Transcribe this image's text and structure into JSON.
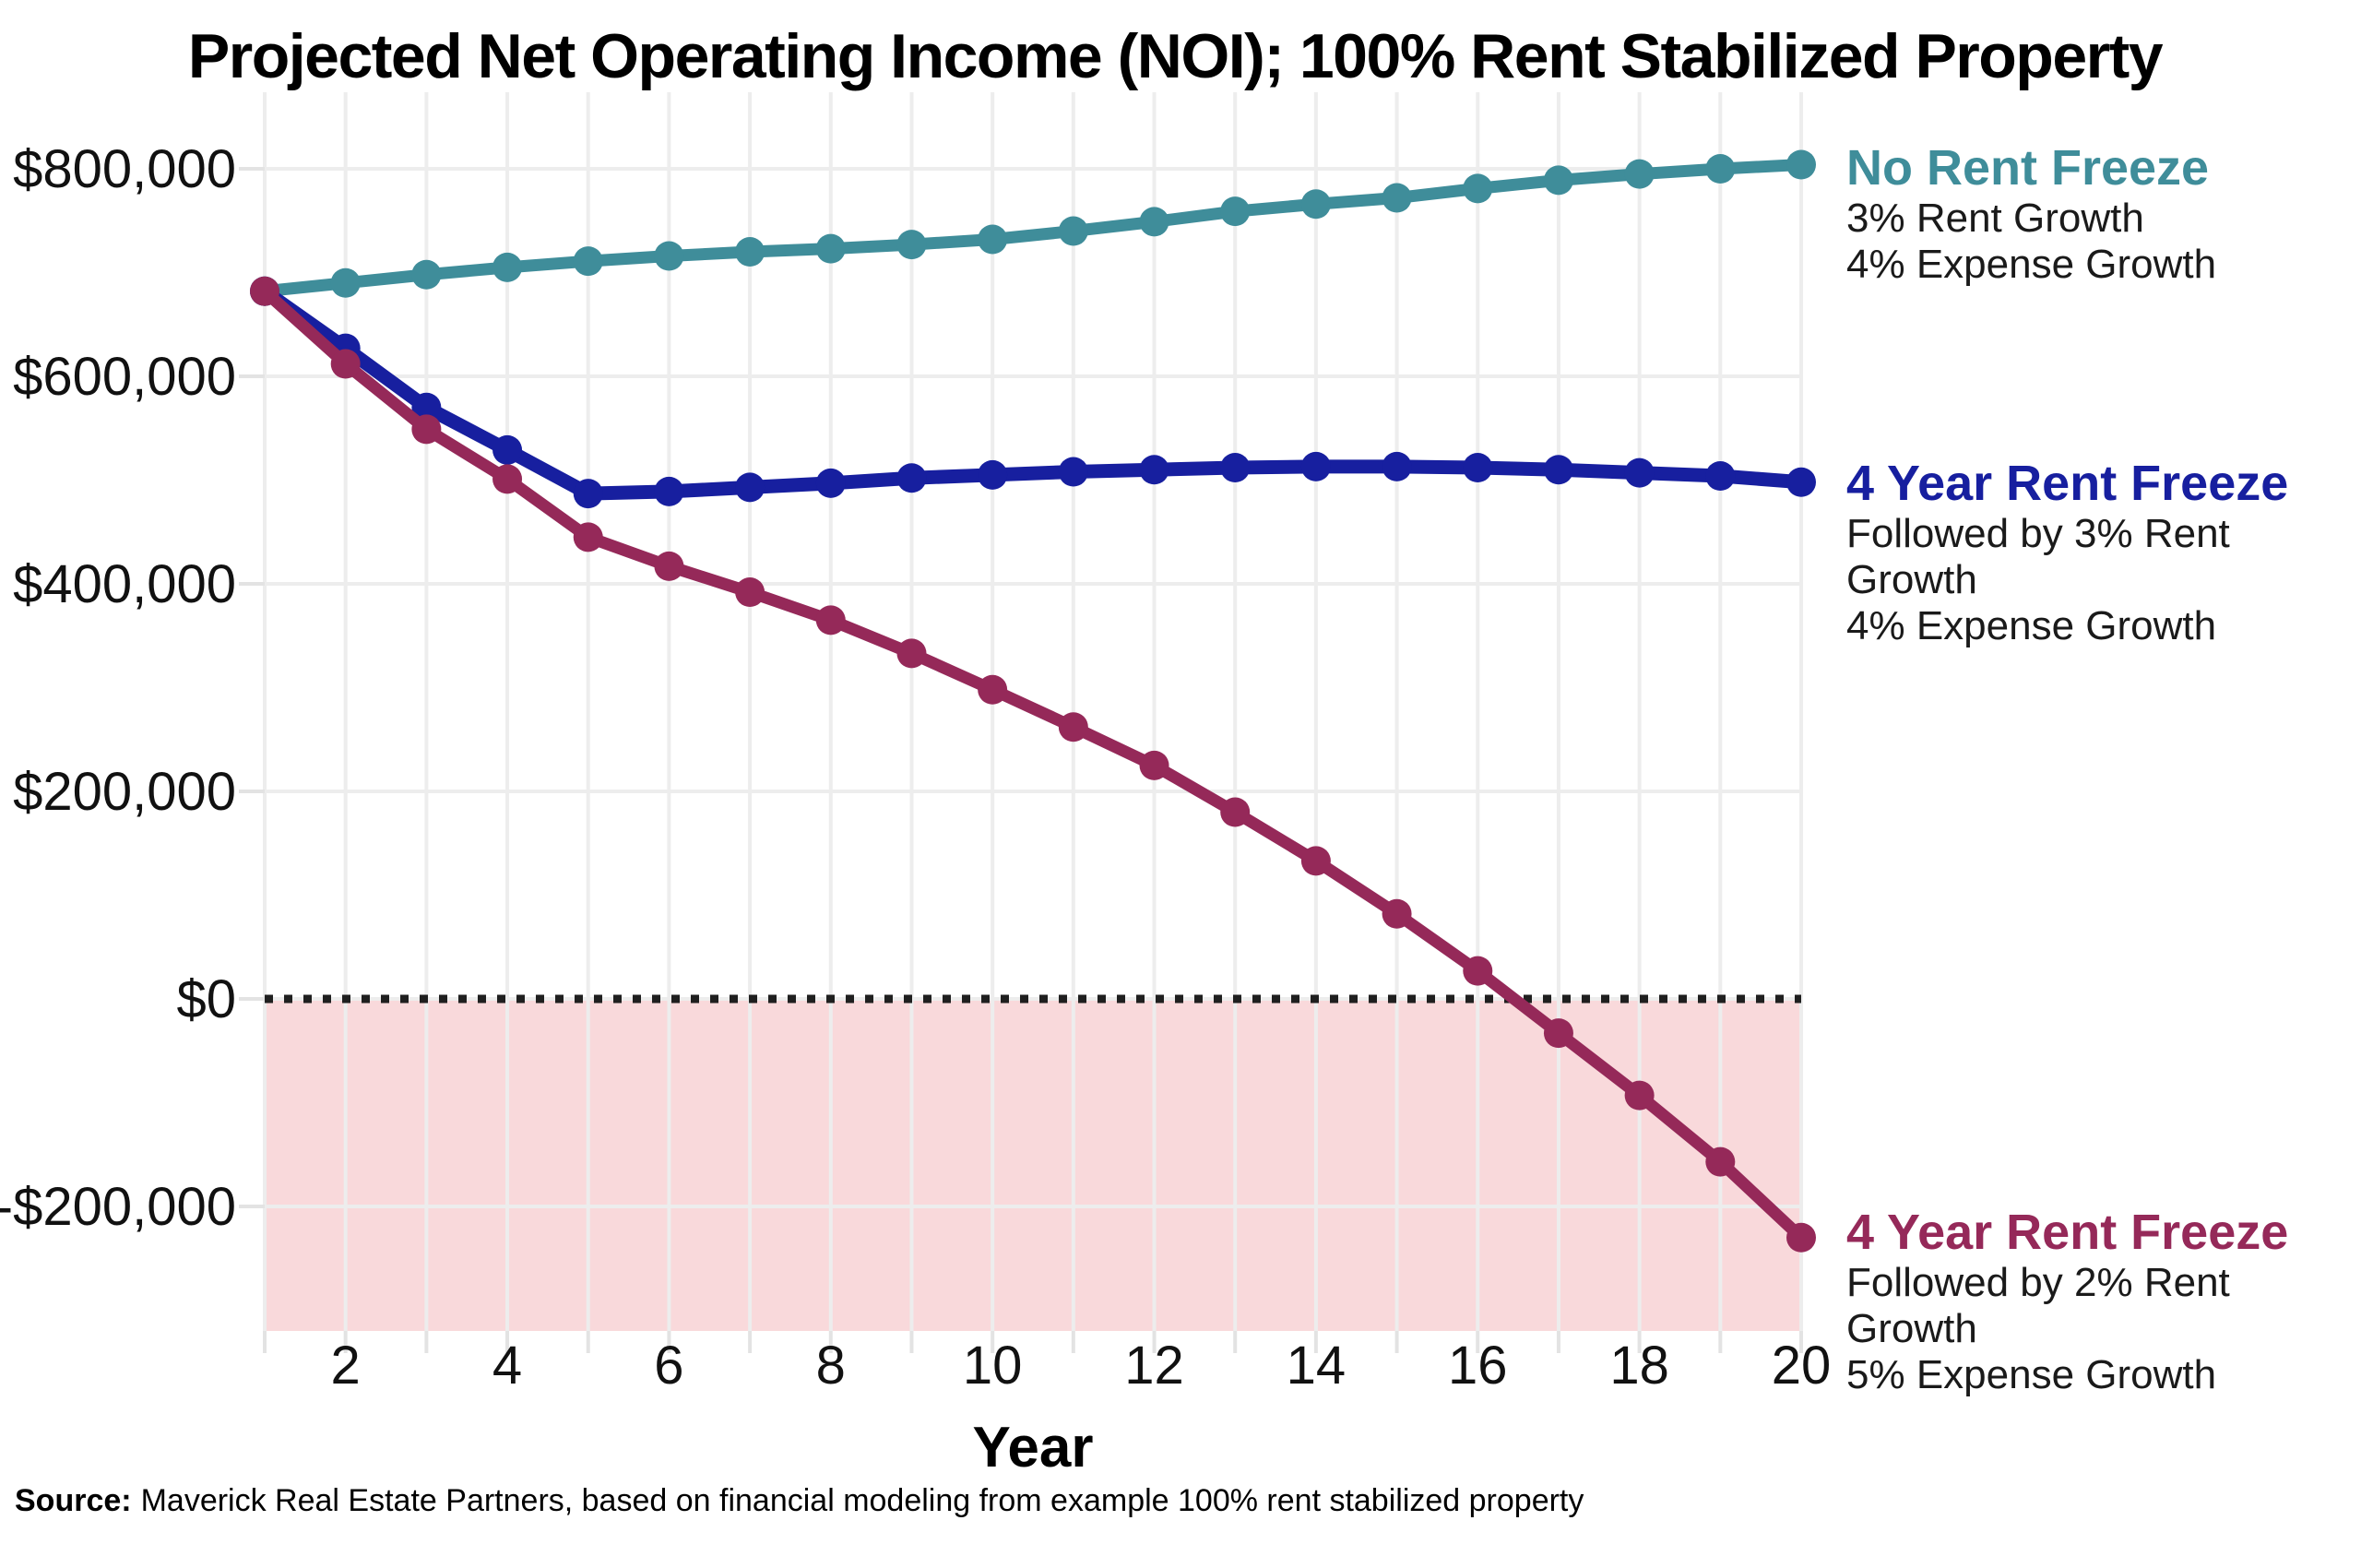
{
  "title": "Projected Net Operating Income (NOI); 100% Rent Stabilized Property",
  "xaxis_title": "Year",
  "source": {
    "label": "Source:",
    "text": "Maverick Real Estate Partners, based on financial modeling from example 100% rent stabilized property"
  },
  "chart_data": {
    "type": "line",
    "title": "Projected Net Operating Income (NOI); 100% Rent Stabilized Property",
    "xlabel": "Year",
    "ylabel": "",
    "x": [
      1,
      2,
      3,
      4,
      5,
      6,
      7,
      8,
      9,
      10,
      11,
      12,
      13,
      14,
      15,
      16,
      17,
      18,
      19,
      20
    ],
    "xlim": [
      1,
      20
    ],
    "ylim": [
      -320000,
      874000
    ],
    "x_ticks": [
      2,
      4,
      6,
      8,
      10,
      12,
      14,
      16,
      18,
      20
    ],
    "y_ticks": [
      {
        "value": 800000,
        "label": "$800,000"
      },
      {
        "value": 600000,
        "label": "$600,000"
      },
      {
        "value": 400000,
        "label": "$400,000"
      },
      {
        "value": 200000,
        "label": "$200,000"
      },
      {
        "value": 0,
        "label": "$0"
      },
      {
        "value": -200000,
        "label": "-$200,000"
      }
    ],
    "grid": true,
    "zero_line": {
      "show": true,
      "color": "#1f1f1f",
      "style": "dotted"
    },
    "negative_region": {
      "fill": "#f9d9db",
      "from": 0,
      "to": -320000
    },
    "legend_position": "right-of-line-ends",
    "series": [
      {
        "name": "No Rent Freeze",
        "color": "#3f8d9a",
        "annotation_title": "No Rent Freeze",
        "annotation_line1": "3% Rent Growth",
        "annotation_line2": "4% Expense Growth",
        "values": [
          682000,
          690000,
          698000,
          705000,
          711000,
          716000,
          720000,
          723000,
          727000,
          732000,
          740000,
          749000,
          759000,
          766000,
          772000,
          781000,
          789000,
          795000,
          800000,
          804000
        ]
      },
      {
        "name": "4 Year Rent Freeze (then 3% Rent Growth)",
        "color": "#171f9f",
        "annotation_title": "4 Year Rent Freeze",
        "annotation_line1": "Followed by 3% Rent Growth",
        "annotation_line2": "4% Expense Growth",
        "values": [
          682000,
          627000,
          570000,
          529000,
          487000,
          489000,
          493000,
          497000,
          502000,
          505000,
          508000,
          510000,
          512000,
          513000,
          513000,
          512000,
          510000,
          507000,
          504000,
          498000
        ]
      },
      {
        "name": "4 Year Rent Freeze (then 2% Rent Growth)",
        "color": "#952959",
        "annotation_title": "4 Year Rent Freeze",
        "annotation_line1": "Followed by 2% Rent Growth",
        "annotation_line2": "5% Expense Growth",
        "values": [
          682000,
          612000,
          549000,
          501000,
          445000,
          417000,
          392000,
          365000,
          333000,
          298000,
          262000,
          225000,
          180000,
          133000,
          82000,
          27000,
          -33000,
          -93000,
          -157000,
          -230000
        ]
      }
    ]
  }
}
